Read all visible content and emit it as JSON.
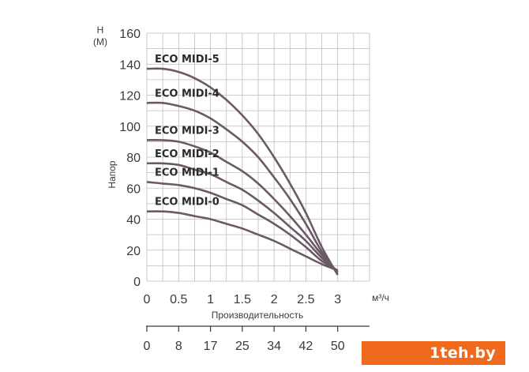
{
  "chart_data": {
    "type": "line",
    "x_axis": {
      "unit_label": "м³/ч",
      "title": "Производительность",
      "ticks": [
        "0",
        "0.5",
        "1",
        "1.5",
        "2",
        "2.5",
        "3"
      ],
      "range": [
        0,
        3.5
      ]
    },
    "secondary_x_axis": {
      "ticks": [
        "0",
        "8",
        "17",
        "25",
        "34",
        "42",
        "50"
      ]
    },
    "y_axis": {
      "unit_label_top": "H",
      "unit_label_bottom": "(M)",
      "title": "Напор",
      "ticks": [
        "0",
        "20",
        "40",
        "60",
        "80",
        "100",
        "120",
        "140",
        "160"
      ],
      "range": [
        0,
        160
      ]
    },
    "grid": true,
    "series": [
      {
        "name": "ECO MIDI-5",
        "x": [
          0,
          0.25,
          0.5,
          0.75,
          1.0,
          1.25,
          1.5,
          1.75,
          2.0,
          2.25,
          2.5,
          2.75,
          3.0
        ],
        "y": [
          137,
          137,
          135,
          131,
          125,
          117,
          107,
          95,
          80,
          63,
          44,
          22,
          4
        ]
      },
      {
        "name": "ECO MIDI-4",
        "x": [
          0,
          0.25,
          0.5,
          0.75,
          1.0,
          1.25,
          1.5,
          1.75,
          2.0,
          2.25,
          2.5,
          2.75,
          3.0
        ],
        "y": [
          115,
          115,
          113,
          110,
          105,
          98,
          90,
          80,
          67,
          53,
          37,
          19,
          5
        ]
      },
      {
        "name": "ECO MIDI-3",
        "x": [
          0,
          0.25,
          0.5,
          0.75,
          1.0,
          1.25,
          1.5,
          1.75,
          2.0,
          2.25,
          2.5,
          2.75,
          3.0
        ],
        "y": [
          91,
          91,
          90,
          87,
          83,
          77,
          71,
          63,
          53,
          42,
          30,
          17,
          6
        ]
      },
      {
        "name": "ECO MIDI-2",
        "x": [
          0,
          0.25,
          0.5,
          0.75,
          1.0,
          1.25,
          1.5,
          1.75,
          2.0,
          2.25,
          2.5,
          2.75,
          3.0
        ],
        "y": [
          76,
          76,
          75,
          72,
          69,
          64,
          59,
          52,
          44,
          35,
          26,
          15,
          6
        ]
      },
      {
        "name": "ECO MIDI-1",
        "x": [
          0,
          0.25,
          0.5,
          0.75,
          1.0,
          1.25,
          1.5,
          1.75,
          2.0,
          2.25,
          2.5,
          2.75,
          3.0
        ],
        "y": [
          64,
          63,
          62,
          60,
          57,
          53,
          49,
          43,
          37,
          30,
          22,
          13,
          7
        ]
      },
      {
        "name": "ECO MIDI-0",
        "x": [
          0,
          0.25,
          0.5,
          0.75,
          1.0,
          1.25,
          1.5,
          1.75,
          2.0,
          2.25,
          2.5,
          2.75,
          3.0
        ],
        "y": [
          45,
          45,
          44,
          42,
          40,
          37,
          34,
          30,
          26,
          21,
          16,
          11,
          7
        ]
      }
    ]
  },
  "watermark": {
    "text": "1teh.by",
    "color": "#f06a1e"
  }
}
